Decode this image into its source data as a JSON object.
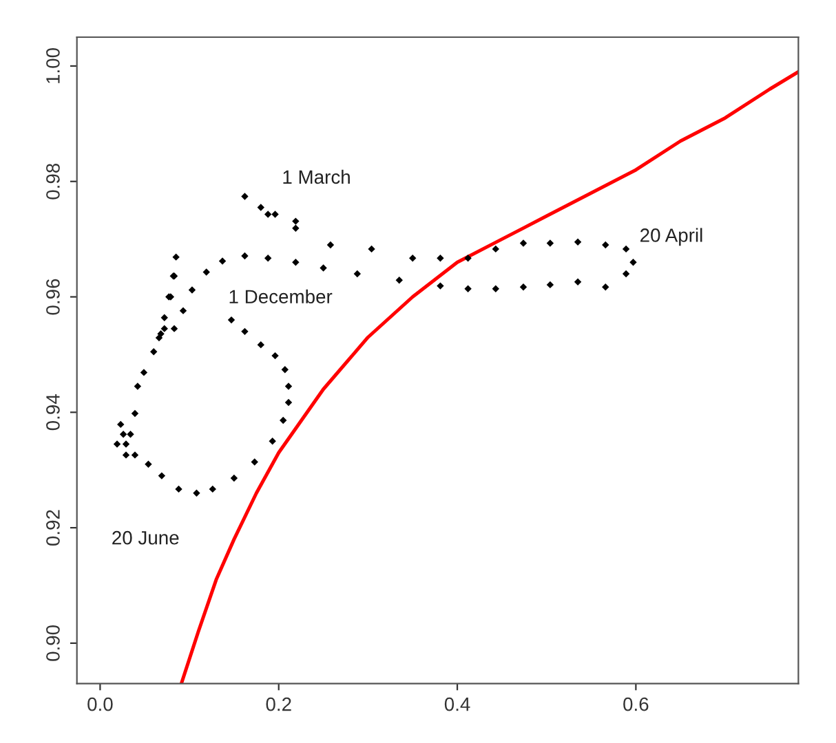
{
  "chart_data": {
    "type": "scatter",
    "xlim": [
      -0.026,
      0.782
    ],
    "ylim": [
      0.893,
      1.005
    ],
    "xticks": [
      {
        "value": 0,
        "label": "0.0"
      },
      {
        "value": 0.2,
        "label": "0.2"
      },
      {
        "value": 0.4,
        "label": "0.4"
      },
      {
        "value": 0.6,
        "label": "0.6"
      }
    ],
    "yticks": [
      {
        "value": 0.9,
        "label": "0.90"
      },
      {
        "value": 0.92,
        "label": "0.92"
      },
      {
        "value": 0.94,
        "label": "0.94"
      },
      {
        "value": 0.96,
        "label": "0.96"
      },
      {
        "value": 0.98,
        "label": "0.98"
      },
      {
        "value": 1.0,
        "label": "1.00"
      }
    ],
    "grid": false,
    "legend": false,
    "marker": "diamond",
    "annotations": [
      "1 March",
      "20 April",
      "1 December",
      "20 June"
    ],
    "series": [
      {
        "color": "#000000",
        "x": [
          0.147,
          0.162,
          0.18,
          0.196,
          0.207,
          0.211,
          0.211,
          0.205,
          0.193,
          0.173,
          0.15,
          0.126,
          0.108,
          0.088,
          0.069,
          0.054,
          0.039,
          0.029,
          0.026,
          0.023,
          0.019,
          0.029,
          0.034,
          0.039,
          0.042,
          0.049,
          0.06,
          0.066,
          0.068,
          0.072,
          0.079,
          0.083,
          0.085,
          0.082,
          0.077,
          0.072,
          0.083,
          0.093,
          0.103,
          0.119,
          0.137,
          0.162,
          0.188,
          0.219,
          0.25,
          0.288,
          0.335,
          0.381,
          0.412,
          0.443,
          0.474,
          0.504,
          0.535,
          0.566,
          0.589,
          0.597,
          0.589,
          0.566,
          0.535,
          0.504,
          0.474,
          0.443,
          0.412,
          0.381,
          0.35,
          0.304,
          0.258,
          0.219,
          0.188,
          0.162,
          0.18,
          0.196,
          0.219
        ],
        "values": [
          0.956,
          0.954,
          0.9517,
          0.9498,
          0.9474,
          0.9445,
          0.9417,
          0.9386,
          0.935,
          0.9314,
          0.9286,
          0.9267,
          0.926,
          0.9267,
          0.929,
          0.931,
          0.9326,
          0.9345,
          0.9362,
          0.9379,
          0.9345,
          0.9326,
          0.9362,
          0.9398,
          0.9445,
          0.9469,
          0.9505,
          0.9529,
          0.9536,
          0.9564,
          0.96,
          0.9636,
          0.9669,
          0.9636,
          0.96,
          0.9545,
          0.9545,
          0.9576,
          0.9612,
          0.9643,
          0.9662,
          0.9671,
          0.9667,
          0.966,
          0.965,
          0.964,
          0.9629,
          0.9619,
          0.9614,
          0.9614,
          0.9617,
          0.9621,
          0.9626,
          0.9617,
          0.964,
          0.966,
          0.9683,
          0.969,
          0.9695,
          0.9693,
          0.9693,
          0.9683,
          0.9667,
          0.9667,
          0.9667,
          0.9683,
          0.969,
          0.9719,
          0.9743,
          0.9774,
          0.9755,
          0.9743,
          0.9731
        ]
      },
      {
        "type": "line",
        "color": "#ff0000",
        "marker": "none",
        "x": [
          0.091,
          0.11,
          0.13,
          0.15,
          0.175,
          0.2,
          0.25,
          0.3,
          0.35,
          0.4,
          0.45,
          0.5,
          0.55,
          0.6,
          0.65,
          0.7,
          0.75,
          0.782
        ],
        "values": [
          0.893,
          0.902,
          0.911,
          0.918,
          0.926,
          0.933,
          0.944,
          0.953,
          0.96,
          0.966,
          0.97,
          0.974,
          0.978,
          0.982,
          0.987,
          0.991,
          0.996,
          0.999
        ]
      }
    ]
  }
}
